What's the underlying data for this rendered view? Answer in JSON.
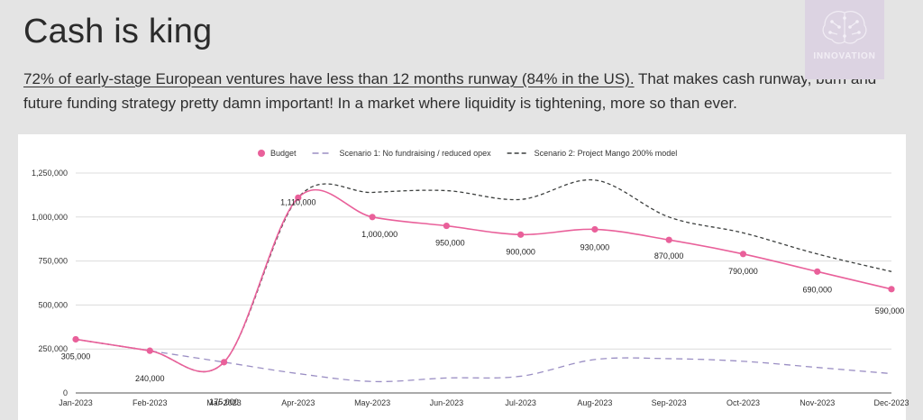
{
  "page": {
    "title": "Cash is king",
    "subtitle_highlight": "72% of early-stage European ventures have less than 12 months runway (84% in the US).",
    "subtitle_rest": " That makes cash runway, burn and future funding strategy pretty damn important! In a market where liquidity is tightening, more so than ever.",
    "logo_text": "INNOVATION"
  },
  "chart_data": {
    "type": "line",
    "categories": [
      "Jan-2023",
      "Feb-2023",
      "Mar-2023",
      "Apr-2023",
      "May-2023",
      "Jun-2023",
      "Jul-2023",
      "Aug-2023",
      "Sep-2023",
      "Oct-2023",
      "Nov-2023",
      "Dec-2023"
    ],
    "ylim": [
      0,
      1250000
    ],
    "yticks": [
      0,
      250000,
      500000,
      750000,
      1000000,
      1250000
    ],
    "ytick_labels": [
      "0",
      "250,000",
      "500,000",
      "750,000",
      "1,000,000",
      "1,250,000"
    ],
    "series": [
      {
        "name": "Budget",
        "color": "#e9609a",
        "style": "solid",
        "markers": true,
        "values": [
          305000,
          240000,
          175000,
          1110000,
          1000000,
          950000,
          900000,
          930000,
          870000,
          790000,
          690000,
          590000
        ],
        "labels": [
          "305,000",
          "240,000",
          "175,000",
          "1,110,000",
          "1,000,000",
          "950,000",
          "900,000",
          "930,000",
          "870,000",
          "790,000",
          "690,000",
          "590,000"
        ]
      },
      {
        "name": "Scenario 1: No fundraising / reduced opex",
        "color": "#9b8fc4",
        "style": "dashed",
        "markers": false,
        "values": [
          305000,
          240000,
          175000,
          110000,
          65000,
          85000,
          95000,
          190000,
          195000,
          180000,
          145000,
          110000
        ]
      },
      {
        "name": "Scenario 2: Project Mango 200% model",
        "color": "#3c3f3e",
        "style": "dashed",
        "markers": false,
        "values": [
          305000,
          240000,
          175000,
          1110000,
          1140000,
          1150000,
          1100000,
          1210000,
          1000000,
          910000,
          790000,
          690000
        ]
      }
    ]
  }
}
